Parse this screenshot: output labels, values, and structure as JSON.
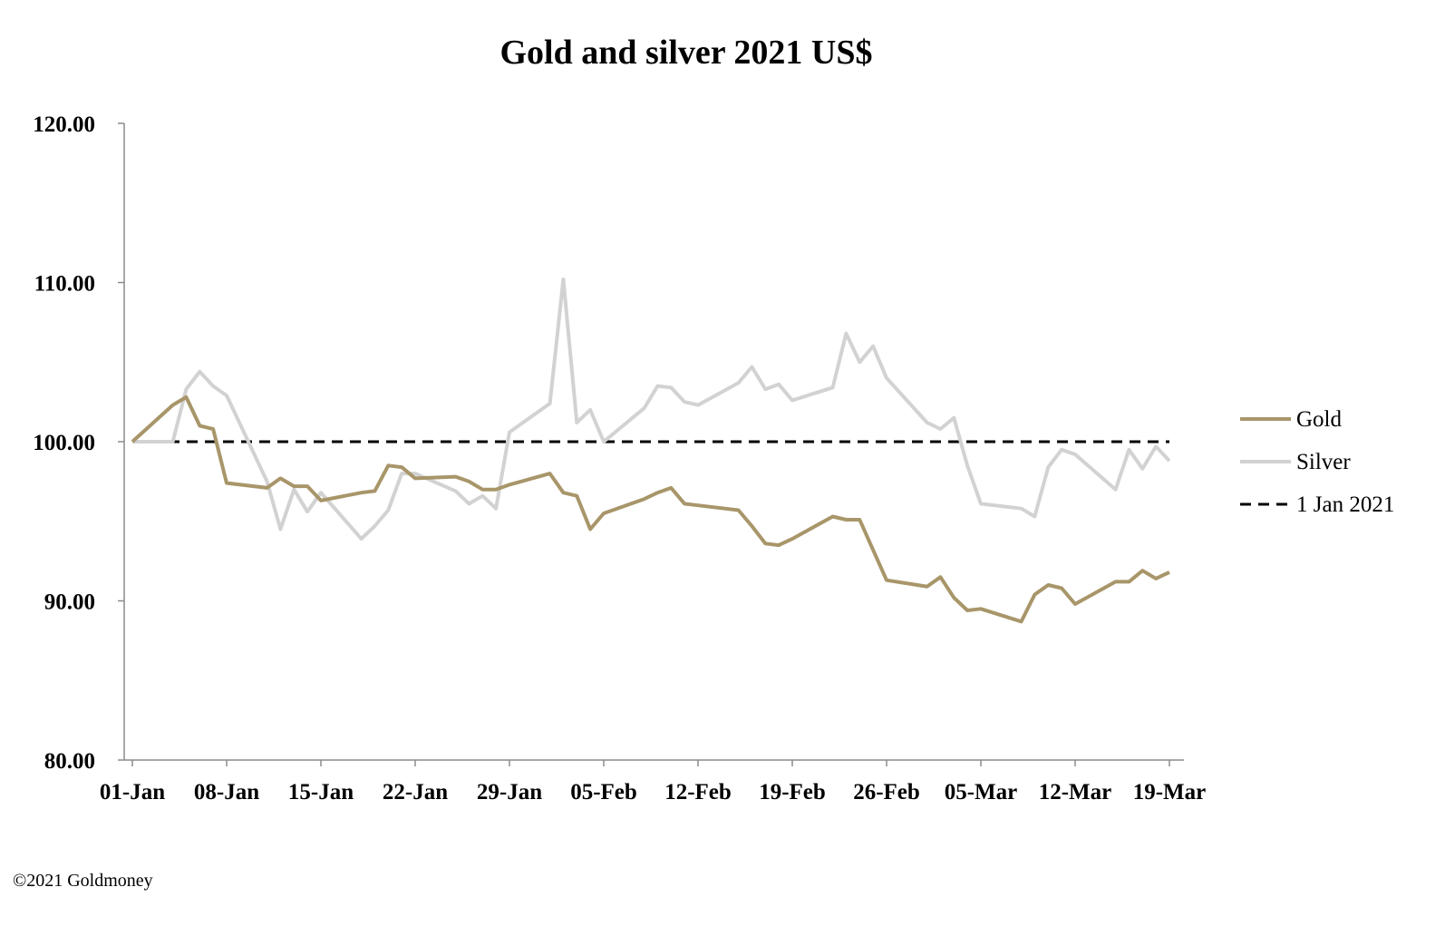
{
  "footer": "©2021 Goldmoney",
  "chart_data": {
    "type": "line",
    "title": "Gold and silver 2021  US$",
    "xlabel": "",
    "ylabel": "",
    "ylim": [
      80,
      120
    ],
    "y_ticks": [
      "80.00",
      "90.00",
      "100.00",
      "110.00",
      "120.00"
    ],
    "x_ticks": [
      "01-Jan",
      "08-Jan",
      "15-Jan",
      "22-Jan",
      "29-Jan",
      "05-Feb",
      "12-Feb",
      "19-Feb",
      "26-Feb",
      "05-Mar",
      "12-Mar",
      "19-Mar"
    ],
    "x_range": [
      "2021-01-01",
      "2021-03-19"
    ],
    "grid": false,
    "legend_position": "right",
    "series": [
      {
        "name": "Gold",
        "color": "#A8966A",
        "style": "solid",
        "x": [
          "2021-01-01",
          "2021-01-04",
          "2021-01-05",
          "2021-01-06",
          "2021-01-07",
          "2021-01-08",
          "2021-01-11",
          "2021-01-12",
          "2021-01-13",
          "2021-01-14",
          "2021-01-15",
          "2021-01-18",
          "2021-01-19",
          "2021-01-20",
          "2021-01-21",
          "2021-01-22",
          "2021-01-25",
          "2021-01-26",
          "2021-01-27",
          "2021-01-28",
          "2021-01-29",
          "2021-02-01",
          "2021-02-02",
          "2021-02-03",
          "2021-02-04",
          "2021-02-05",
          "2021-02-08",
          "2021-02-09",
          "2021-02-10",
          "2021-02-11",
          "2021-02-12",
          "2021-02-15",
          "2021-02-16",
          "2021-02-17",
          "2021-02-18",
          "2021-02-19",
          "2021-02-22",
          "2021-02-23",
          "2021-02-24",
          "2021-02-25",
          "2021-02-26",
          "2021-03-01",
          "2021-03-02",
          "2021-03-03",
          "2021-03-04",
          "2021-03-05",
          "2021-03-08",
          "2021-03-09",
          "2021-03-10",
          "2021-03-11",
          "2021-03-12",
          "2021-03-15",
          "2021-03-16",
          "2021-03-17",
          "2021-03-18",
          "2021-03-19"
        ],
        "values": [
          100.0,
          102.3,
          102.8,
          101.0,
          100.8,
          97.4,
          97.1,
          97.7,
          97.2,
          97.2,
          96.3,
          96.8,
          96.9,
          98.5,
          98.4,
          97.7,
          97.8,
          97.5,
          97.0,
          97.0,
          97.3,
          98.0,
          96.8,
          96.6,
          94.5,
          95.5,
          96.4,
          96.8,
          97.1,
          96.1,
          96.0,
          95.7,
          94.7,
          93.6,
          93.5,
          93.9,
          95.3,
          95.1,
          95.1,
          93.2,
          91.3,
          90.9,
          91.5,
          90.2,
          89.4,
          89.5,
          88.7,
          90.4,
          91.0,
          90.8,
          89.8,
          91.2,
          91.2,
          91.9,
          91.4,
          91.8
        ]
      },
      {
        "name": "Silver",
        "color": "#D2D2D2",
        "style": "solid",
        "x": [
          "2021-01-01",
          "2021-01-04",
          "2021-01-05",
          "2021-01-06",
          "2021-01-07",
          "2021-01-08",
          "2021-01-11",
          "2021-01-12",
          "2021-01-13",
          "2021-01-14",
          "2021-01-15",
          "2021-01-18",
          "2021-01-19",
          "2021-01-20",
          "2021-01-21",
          "2021-01-22",
          "2021-01-25",
          "2021-01-26",
          "2021-01-27",
          "2021-01-28",
          "2021-01-29",
          "2021-02-01",
          "2021-02-02",
          "2021-02-03",
          "2021-02-04",
          "2021-02-05",
          "2021-02-08",
          "2021-02-09",
          "2021-02-10",
          "2021-02-11",
          "2021-02-12",
          "2021-02-15",
          "2021-02-16",
          "2021-02-17",
          "2021-02-18",
          "2021-02-19",
          "2021-02-22",
          "2021-02-23",
          "2021-02-24",
          "2021-02-25",
          "2021-02-26",
          "2021-03-01",
          "2021-03-02",
          "2021-03-03",
          "2021-03-04",
          "2021-03-05",
          "2021-03-08",
          "2021-03-09",
          "2021-03-10",
          "2021-03-11",
          "2021-03-12",
          "2021-03-15",
          "2021-03-16",
          "2021-03-17",
          "2021-03-18",
          "2021-03-19"
        ],
        "values": [
          100.0,
          100.0,
          103.3,
          104.4,
          103.5,
          102.9,
          97.5,
          94.5,
          97.0,
          95.6,
          96.8,
          93.9,
          94.7,
          95.7,
          98.0,
          98.0,
          96.9,
          96.1,
          96.6,
          95.8,
          100.6,
          102.4,
          110.2,
          101.2,
          102.0,
          100.0,
          102.1,
          103.5,
          103.4,
          102.5,
          102.3,
          103.7,
          104.7,
          103.3,
          103.6,
          102.6,
          103.4,
          106.8,
          105.0,
          106.0,
          104.0,
          101.2,
          100.8,
          101.5,
          98.5,
          96.1,
          95.8,
          95.3,
          98.4,
          99.5,
          99.2,
          97.0,
          99.5,
          98.3,
          99.7,
          98.8
        ]
      },
      {
        "name": "1 Jan 2021",
        "color": "#000000",
        "style": "dashed",
        "x": [
          "2021-01-01",
          "2021-03-19"
        ],
        "values": [
          100.0,
          100.0
        ]
      }
    ]
  }
}
